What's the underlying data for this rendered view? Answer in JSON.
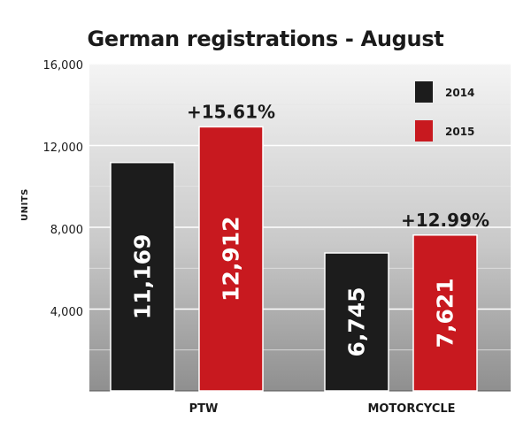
{
  "chart_data": {
    "type": "bar",
    "title": "German registrations - August",
    "xlabel": "",
    "ylabel": "UNITS",
    "categories": [
      "PTW",
      "MOTORCYCLE"
    ],
    "series": [
      {
        "name": "2014",
        "values": [
          11169,
          6745
        ],
        "labels": [
          "11,169",
          "6,745"
        ],
        "color": "#1c1c1c"
      },
      {
        "name": "2015",
        "values": [
          12912,
          7621
        ],
        "labels": [
          "12,912",
          "7,621"
        ],
        "color": "#c8191f"
      }
    ],
    "changes": [
      "+15.61%",
      "+12.99%"
    ],
    "ylim": [
      0,
      16000
    ],
    "yticks": [
      0,
      4000,
      8000,
      12000,
      16000
    ],
    "ytick_labels": [
      "",
      "4,000",
      "8,000",
      "12,000",
      "16,000"
    ],
    "grid": true,
    "legend_position": "top-right"
  }
}
